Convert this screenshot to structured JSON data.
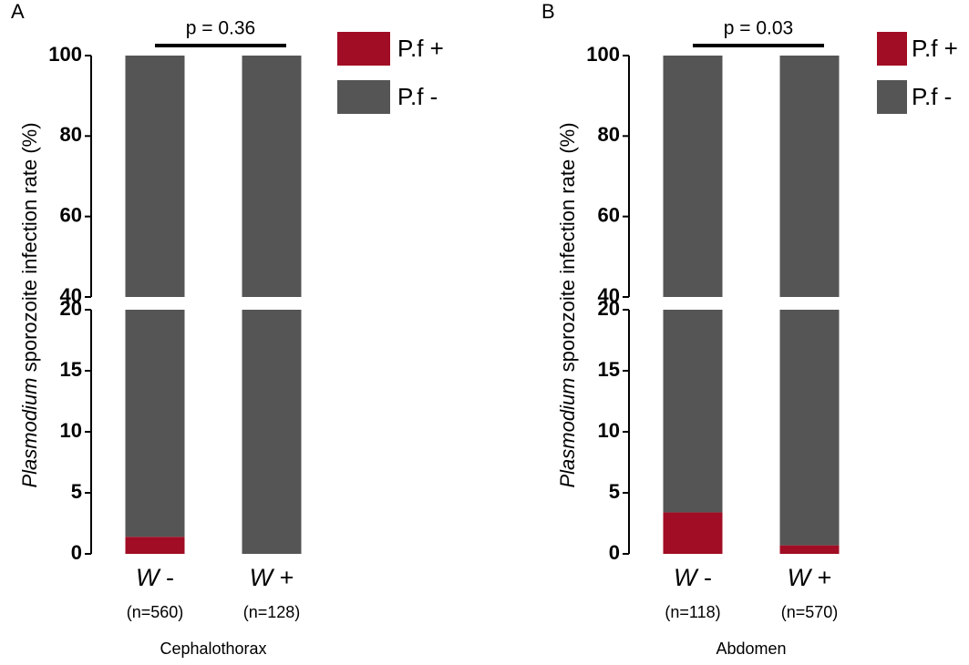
{
  "chart_data": [
    {
      "type": "bar",
      "stacked": true,
      "panel_label": "A",
      "ylabel": "Plasmodium sporozoite infection rate (%)",
      "xlabel": "Cephalothorax",
      "categories": [
        "W -",
        "W +"
      ],
      "sample_labels": [
        "(n=560)",
        "(n=128)"
      ],
      "series": [
        {
          "name": "P.f +",
          "color": "#a10d24",
          "values": [
            1.4,
            0
          ]
        },
        {
          "name": "P.f -",
          "color": "#555555",
          "values": [
            98.6,
            100
          ]
        }
      ],
      "ylim_lower": [
        0,
        20
      ],
      "yticks_lower": [
        0,
        5,
        10,
        15,
        20
      ],
      "ylim_upper": [
        40,
        100
      ],
      "yticks_upper": [
        40,
        60,
        80,
        100
      ],
      "annotation": "p = 0.36"
    },
    {
      "type": "bar",
      "stacked": true,
      "panel_label": "B",
      "ylabel": "Plasmodium sporozoite infection rate (%)",
      "xlabel": "Abdomen",
      "categories": [
        "W -",
        "W +"
      ],
      "sample_labels": [
        "(n=118)",
        "(n=570)"
      ],
      "series": [
        {
          "name": "P.f +",
          "color": "#a10d24",
          "values": [
            3.4,
            0.7
          ]
        },
        {
          "name": "P.f -",
          "color": "#555555",
          "values": [
            96.6,
            99.3
          ]
        }
      ],
      "ylim_lower": [
        0,
        20
      ],
      "yticks_lower": [
        0,
        5,
        10,
        15,
        20
      ],
      "ylim_upper": [
        40,
        100
      ],
      "yticks_upper": [
        40,
        60,
        80,
        100
      ],
      "annotation": "p = 0.03"
    }
  ]
}
